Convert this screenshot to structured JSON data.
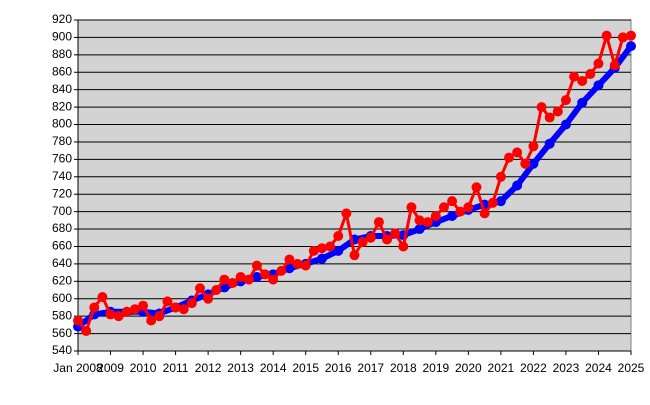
{
  "chart_data": {
    "type": "line",
    "xlim": [
      2008,
      2025
    ],
    "xticks": [
      {
        "value": 2008,
        "label": "Jan 2008"
      },
      2009,
      2010,
      2011,
      2012,
      2013,
      2014,
      2015,
      2016,
      2017,
      2018,
      2019,
      2020,
      2021,
      2022,
      2023,
      2024,
      2025
    ],
    "ylim": [
      540,
      920
    ],
    "yticks": [
      540,
      560,
      580,
      600,
      620,
      640,
      660,
      680,
      700,
      720,
      740,
      760,
      780,
      800,
      820,
      840,
      860,
      880,
      900,
      920
    ],
    "grid": true,
    "series": [
      {
        "color": "#0000ff",
        "x": [
          2008,
          2008.5,
          2009,
          2009.5,
          2010,
          2010.5,
          2011,
          2011.5,
          2012,
          2012.5,
          2013,
          2013.5,
          2014,
          2014.5,
          2015,
          2015.5,
          2016,
          2016.5,
          2017,
          2017.5,
          2018,
          2018.5,
          2019,
          2019.5,
          2020,
          2020.5,
          2021,
          2021.5,
          2022,
          2022.5,
          2023,
          2023.5,
          2024,
          2024.5,
          2025
        ],
        "values": [
          568,
          582,
          585,
          585,
          585,
          583,
          590,
          598,
          605,
          613,
          620,
          625,
          628,
          635,
          640,
          646,
          655,
          668,
          672,
          672,
          673,
          680,
          688,
          695,
          702,
          708,
          712,
          730,
          755,
          778,
          800,
          825,
          845,
          865,
          890
        ]
      },
      {
        "color": "#ff0000",
        "x": [
          2008,
          2008.25,
          2008.5,
          2008.75,
          2009,
          2009.25,
          2009.5,
          2009.75,
          2010,
          2010.25,
          2010.5,
          2010.75,
          2011,
          2011.25,
          2011.5,
          2011.75,
          2012,
          2012.25,
          2012.5,
          2012.75,
          2013,
          2013.25,
          2013.5,
          2013.75,
          2014,
          2014.25,
          2014.5,
          2014.75,
          2015,
          2015.25,
          2015.5,
          2015.75,
          2016,
          2016.25,
          2016.5,
          2016.75,
          2017,
          2017.25,
          2017.5,
          2017.75,
          2018,
          2018.25,
          2018.5,
          2018.75,
          2019,
          2019.25,
          2019.5,
          2019.75,
          2020,
          2020.25,
          2020.5,
          2020.75,
          2021,
          2021.25,
          2021.5,
          2021.75,
          2022,
          2022.25,
          2022.5,
          2022.75,
          2023,
          2023.25,
          2023.5,
          2023.75,
          2024,
          2024.25,
          2024.5,
          2024.75,
          2025
        ],
        "values": [
          575,
          563,
          590,
          602,
          582,
          580,
          585,
          588,
          592,
          575,
          580,
          597,
          590,
          588,
          595,
          612,
          600,
          610,
          622,
          618,
          625,
          622,
          638,
          628,
          622,
          632,
          645,
          640,
          638,
          655,
          658,
          660,
          672,
          698,
          650,
          665,
          670,
          688,
          668,
          675,
          660,
          705,
          690,
          688,
          695,
          705,
          712,
          700,
          705,
          728,
          698,
          710,
          740,
          762,
          768,
          755,
          775,
          820,
          808,
          815,
          828,
          855,
          850,
          858,
          870,
          902,
          868,
          900,
          902
        ]
      }
    ]
  }
}
